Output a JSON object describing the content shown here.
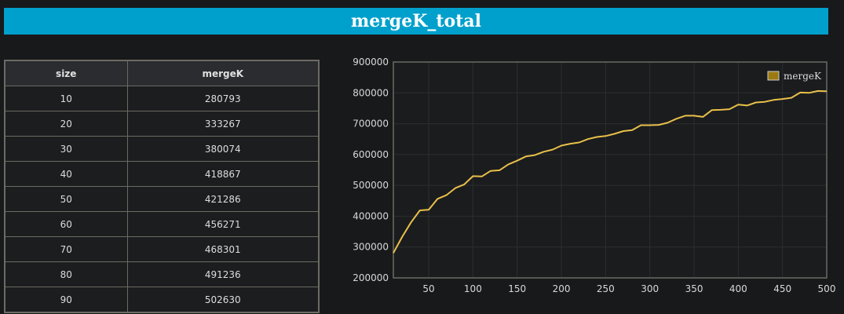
{
  "title": "mergeK_total",
  "table": {
    "headers": [
      "size",
      "mergeK"
    ],
    "rows": [
      [
        "10",
        "280793"
      ],
      [
        "20",
        "333267"
      ],
      [
        "30",
        "380074"
      ],
      [
        "40",
        "418867"
      ],
      [
        "50",
        "421286"
      ],
      [
        "60",
        "456271"
      ],
      [
        "70",
        "468301"
      ],
      [
        "80",
        "491236"
      ],
      [
        "90",
        "502630"
      ]
    ]
  },
  "colors": {
    "line": "#e8c04a",
    "legend_swatch": "#9c7a12",
    "title_bar": "#00a0cc"
  },
  "chart_data": {
    "type": "line",
    "title": "",
    "xlabel": "",
    "ylabel": "",
    "xlim": [
      10,
      500
    ],
    "ylim": [
      200000,
      900000
    ],
    "x_ticks": [
      50,
      100,
      150,
      200,
      250,
      300,
      350,
      400,
      450,
      500
    ],
    "y_ticks": [
      200000,
      300000,
      400000,
      500000,
      600000,
      700000,
      800000,
      900000
    ],
    "grid": true,
    "legend_position": "top-right",
    "x": [
      10,
      20,
      30,
      40,
      50,
      60,
      70,
      80,
      90,
      100,
      110,
      120,
      130,
      140,
      150,
      160,
      170,
      180,
      190,
      200,
      210,
      220,
      230,
      240,
      250,
      260,
      270,
      280,
      290,
      300,
      310,
      320,
      330,
      340,
      350,
      360,
      370,
      380,
      390,
      400,
      410,
      420,
      430,
      440,
      450,
      460,
      470,
      480,
      490,
      500
    ],
    "series": [
      {
        "name": "mergeK",
        "values": [
          280793,
          333267,
          380074,
          418867,
          421286,
          456271,
          468301,
          491236,
          502630,
          530000,
          529000,
          547000,
          549000,
          568000,
          580000,
          594000,
          598000,
          609000,
          616000,
          629000,
          635000,
          639000,
          650000,
          657000,
          660000,
          667000,
          676000,
          679000,
          695000,
          695000,
          696000,
          703000,
          716000,
          726000,
          726000,
          722000,
          744000,
          745000,
          747000,
          762000,
          759000,
          769000,
          771000,
          777000,
          780000,
          784000,
          801000,
          800000,
          806000,
          805000
        ]
      }
    ]
  }
}
